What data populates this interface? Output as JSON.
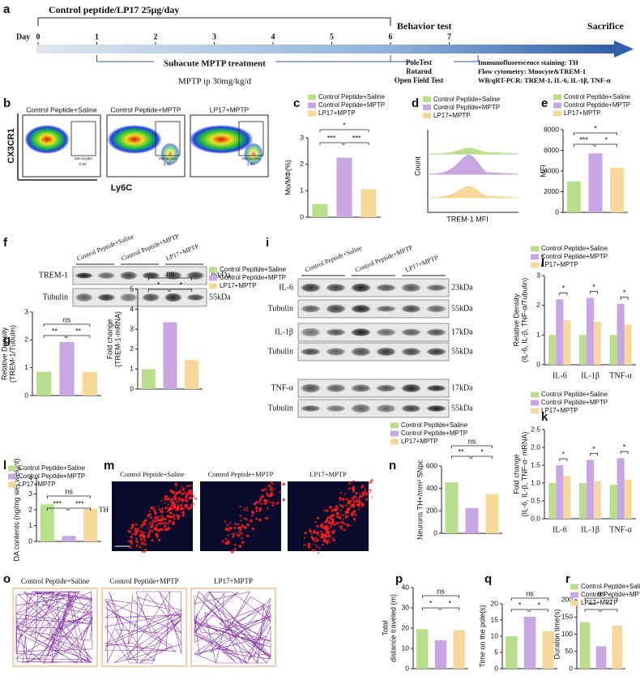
{
  "panel_labels": [
    "a",
    "b",
    "c",
    "d",
    "e",
    "f",
    "g",
    "h",
    "i",
    "j",
    "k",
    "l",
    "m",
    "n",
    "o",
    "p",
    "q",
    "r"
  ],
  "timeline": {
    "top_label": "Control peptide/LP17  25μg/day",
    "behavior": "Behavior test",
    "sacrifice": "Sacrifice",
    "day_label": "Day",
    "days": [
      0,
      1,
      2,
      3,
      4,
      5,
      6,
      7
    ],
    "mptp": "Subacute MPTP treatment",
    "dose": "MPTP ip 30mg/kg/d",
    "tests": [
      "PoleTest",
      "Rotarod",
      "Open Field Test"
    ],
    "assays": [
      "Immunofluorescence staining: TH",
      "Flow cytometry: Mnocyte&TREM-1",
      "WB/qRT-PCR: TREM-1, IL-6, IL-1β, TNF-α"
    ]
  },
  "flow": {
    "groups": [
      "Control Peptide+Saline",
      "Control Peptide+MPTP",
      "LP17+MPTP"
    ],
    "y_label": "CX3CR1",
    "x_label": "Ly6C",
    "gate": "Monocytes",
    "gate_values": [
      0.64,
      2.12,
      1.06
    ]
  },
  "histogram": {
    "legend": [
      "Control Peptide+Saline",
      "Control Peptide+MPTP",
      "LP17+MPTP"
    ],
    "y_label": "Count",
    "x_label": "TREM-1 MFI"
  },
  "blot_f": {
    "groups": [
      "Control Peptide+Saline",
      "Control Peptide+MPTP",
      "LP17+MPTP"
    ],
    "rows": [
      "TREM-1",
      "Tubulin"
    ],
    "sizes": [
      "26kDa",
      "55kDa"
    ]
  },
  "blot_i": {
    "groups": [
      "Control Peptide+Saline",
      "Control Peptide+MPTP",
      "LP17+MPTP"
    ],
    "rows": [
      "IL-6",
      "Tubulin",
      "IL-1β",
      "Tubulin",
      "TNF-α",
      "Tubulin"
    ],
    "sizes": [
      "23kDa",
      "55kDa",
      "17kDa",
      "55kDa",
      "17kDa",
      "55kDa"
    ]
  },
  "images_m": {
    "groups": [
      "Control Peptide+Saline",
      "Control Peptide+MPTP",
      "LP17+MPTP"
    ],
    "stain": "TH",
    "scale": "200μm"
  },
  "open_field": {
    "groups": [
      "Control Peptide+Saline",
      "Control Peptide+MPTP",
      "LP17+MPTP"
    ]
  },
  "chart_data": [
    {
      "type": "bar",
      "y_label": [
        "Mo/MΦ(%)"
      ],
      "ylim": [
        0,
        3
      ],
      "yticks": [
        0,
        1,
        2,
        3
      ],
      "annotations": [
        "*",
        "***",
        "***"
      ],
      "series": [
        {
          "name": "Control Peptide+Saline",
          "color": "#b9de8c",
          "values": [
            0.5
          ]
        },
        {
          "name": "Control Peptide+MPTP",
          "color": "#c8a6e2",
          "values": [
            2.25
          ]
        },
        {
          "name": "LP17+MPTP",
          "color": "#f5d89a",
          "values": [
            1.05
          ]
        }
      ]
    },
    {
      "type": "bar",
      "y_label": [
        "MFI"
      ],
      "ylim": [
        0,
        8000
      ],
      "yticks": [
        0,
        2000,
        4000,
        6000,
        8000
      ],
      "annotations": [
        "*",
        "***",
        "*"
      ],
      "series": [
        {
          "name": "Control Peptide+Saline",
          "color": "#b9de8c",
          "values": [
            3000
          ]
        },
        {
          "name": "Control Peptide+MPTP",
          "color": "#c8a6e2",
          "values": [
            5700
          ]
        },
        {
          "name": "LP17+MPTP",
          "color": "#f5d89a",
          "values": [
            4300
          ]
        }
      ]
    },
    {
      "type": "bar",
      "y_label": [
        "Relative Density",
        "(TREM-1/Tubulin)"
      ],
      "ylim": [
        0,
        3
      ],
      "yticks": [
        0,
        1,
        2,
        3
      ],
      "annotations": [
        "ns",
        "**",
        "**"
      ],
      "series": [
        {
          "color": "#b9de8c",
          "values": [
            0.85
          ]
        },
        {
          "color": "#c8a6e2",
          "values": [
            1.92
          ]
        },
        {
          "color": "#f5d89a",
          "values": [
            0.85
          ]
        }
      ]
    },
    {
      "type": "bar",
      "y_label": [
        "Fold change",
        "(TREM-1-mRNA)"
      ],
      "ylim": [
        0,
        5
      ],
      "yticks": [
        0,
        1,
        2,
        3,
        4,
        5
      ],
      "annotations": [
        "ns",
        "*",
        "*"
      ],
      "series": [
        {
          "name": "Control Peptide+Saline",
          "color": "#b9de8c",
          "values": [
            1.0
          ]
        },
        {
          "name": "Control Peptide+MPTP",
          "color": "#c8a6e2",
          "values": [
            3.35
          ]
        },
        {
          "name": "LP17+MPTP",
          "color": "#f5d89a",
          "values": [
            1.45
          ]
        }
      ]
    },
    {
      "type": "grouped_bar",
      "y_label": [
        "Relative Density",
        "(IL-6, IL-β, TNF-α/Tubulin)"
      ],
      "categories": [
        "IL-6",
        "IL-1β",
        "TNF-α"
      ],
      "ylim": [
        0,
        3
      ],
      "yticks": [
        0,
        1,
        2,
        3
      ],
      "annotations": [
        "*",
        "*",
        "*"
      ],
      "series": [
        {
          "name": "Control Peptide+Saline",
          "color": "#b9de8c",
          "values": [
            1.0,
            1.0,
            1.0
          ]
        },
        {
          "name": "Control Peptide+MPTP",
          "color": "#c8a6e2",
          "values": [
            2.2,
            2.25,
            2.05
          ]
        },
        {
          "name": "LP17+MPTP",
          "color": "#f5d89a",
          "values": [
            1.5,
            1.45,
            1.35
          ]
        }
      ]
    },
    {
      "type": "grouped_bar",
      "y_label": [
        "Fold change",
        "(IL-6, IL-β, TNF-α- mRNA)"
      ],
      "categories": [
        "IL-6",
        "IL-1β",
        "TNF-α"
      ],
      "ylim": [
        0,
        2.5
      ],
      "yticks": [
        {
          "value": 0,
          "label": "0.0"
        },
        0.5,
        {
          "value": 1,
          "label": "1.0"
        },
        1.5,
        {
          "value": 2,
          "label": "2.0"
        },
        2.5
      ],
      "annotations": [
        "*",
        "*",
        "*"
      ],
      "series": [
        {
          "name": "Control Peptide+Saline",
          "color": "#b9de8c",
          "values": [
            1.0,
            1.0,
            0.95
          ]
        },
        {
          "name": "Control Peptide+MPTP",
          "color": "#c8a6e2",
          "values": [
            1.5,
            1.65,
            1.7
          ]
        },
        {
          "name": "LP17+MPTP",
          "color": "#f5d89a",
          "values": [
            1.2,
            1.05,
            1.1
          ]
        }
      ]
    },
    {
      "type": "bar",
      "y_label": [
        "DA contents (ng/mg wet weight)"
      ],
      "ylim": [
        0,
        4
      ],
      "yticks": [
        0,
        1,
        2,
        3,
        4
      ],
      "annotations": [
        "ns",
        "***",
        "***"
      ],
      "series": [
        {
          "name": "Control Peptide+Saline",
          "color": "#b9de8c",
          "values": [
            2.35
          ]
        },
        {
          "name": "Control Peptide+MPTP",
          "color": "#c8a6e2",
          "values": [
            0.35
          ]
        },
        {
          "name": "LP17+MPTP",
          "color": "#f5d89a",
          "values": [
            2.05
          ]
        }
      ]
    },
    {
      "type": "bar",
      "y_label": [
        "Neurons TH+/mm² SNpc"
      ],
      "ylim": [
        0,
        600
      ],
      "yticks": [
        0,
        200,
        400,
        600
      ],
      "annotations": [
        "ns",
        "**",
        "*"
      ],
      "series": [
        {
          "name": "Control Peptide+Saline",
          "color": "#b9de8c",
          "values": [
            455
          ]
        },
        {
          "name": "Control Peptide+MPTP",
          "color": "#c8a6e2",
          "values": [
            225
          ]
        },
        {
          "name": "LP17+MPTP",
          "color": "#f5d89a",
          "values": [
            350
          ]
        }
      ]
    },
    {
      "type": "bar",
      "y_label": [
        "Total",
        "distance traveled (m)"
      ],
      "ylim": [
        0,
        40
      ],
      "yticks": [
        0,
        10,
        20,
        30,
        40
      ],
      "annotations": [
        "ns",
        "*",
        "*"
      ],
      "series": [
        {
          "color": "#b9de8c",
          "values": [
            19.5
          ]
        },
        {
          "color": "#c8a6e2",
          "values": [
            14
          ]
        },
        {
          "color": "#f5d89a",
          "values": [
            19
          ]
        }
      ]
    },
    {
      "type": "bar",
      "y_label": [
        "Time on the pole(s)"
      ],
      "ylim": [
        0,
        20
      ],
      "yticks": [
        0,
        5,
        10,
        15,
        20
      ],
      "annotations": [
        "ns",
        "*",
        "*"
      ],
      "series": [
        {
          "color": "#b9de8c",
          "values": [
            10
          ]
        },
        {
          "color": "#c8a6e2",
          "values": [
            16
          ]
        },
        {
          "color": "#f5d89a",
          "values": [
            11.5
          ]
        }
      ]
    },
    {
      "type": "bar",
      "y_label": [
        "Duraton time(s)"
      ],
      "ylim": [
        0,
        200
      ],
      "yticks": [
        0,
        50,
        100,
        150,
        200
      ],
      "annotations": [
        "ns",
        "***",
        "**"
      ],
      "series": [
        {
          "name": "Control.Peptide+Saline",
          "color": "#b9de8c",
          "values": [
            135
          ]
        },
        {
          "name": "Control Peptide+MPTP",
          "color": "#c8a6e2",
          "values": [
            65
          ]
        },
        {
          "name": "LP17+MPTP",
          "color": "#f5d89a",
          "values": [
            125
          ]
        }
      ]
    }
  ]
}
